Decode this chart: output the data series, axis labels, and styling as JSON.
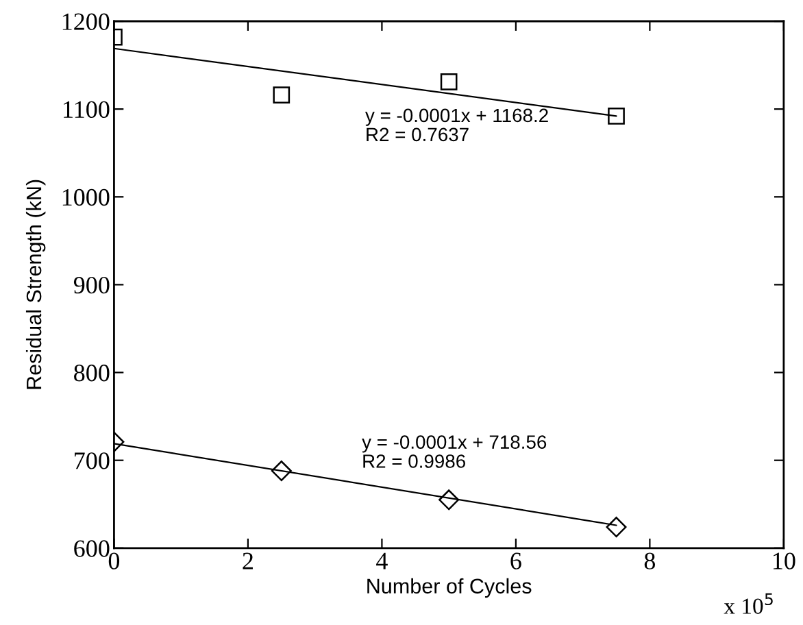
{
  "chart_data": {
    "type": "scatter",
    "xlabel": "Number of Cycles",
    "ylabel": "Residual Strength (kN)",
    "xlim": [
      0,
      10
    ],
    "xticks": [
      0,
      2,
      4,
      6,
      8,
      10
    ],
    "ylim": [
      600,
      1200
    ],
    "yticks": [
      600,
      700,
      800,
      900,
      1000,
      1100,
      1200
    ],
    "grid": false,
    "series": [
      {
        "marker": "square",
        "color": "#000000",
        "x": [
          0,
          2.5,
          5,
          7.5
        ],
        "values": [
          1182,
          1116,
          1131,
          1092
        ]
      },
      {
        "type": "line",
        "marker": "none",
        "color": "#000000",
        "x": [
          0,
          7.5
        ],
        "values": [
          1169,
          1092
        ]
      },
      {
        "marker": "diamond",
        "color": "#000000",
        "x": [
          0,
          2.5,
          5,
          7.5
        ],
        "values": [
          721,
          688,
          655,
          624
        ]
      },
      {
        "type": "line",
        "marker": "none",
        "color": "#000000",
        "x": [
          0,
          7.5
        ],
        "values": [
          719,
          626
        ]
      }
    ],
    "annotations": [
      "y = -0.0001x + 1168.2\nR2 = 0.7637",
      "y = -0.0001x + 718.56\nR2 = 0.9986",
      "x 10$^{5}$"
    ]
  }
}
